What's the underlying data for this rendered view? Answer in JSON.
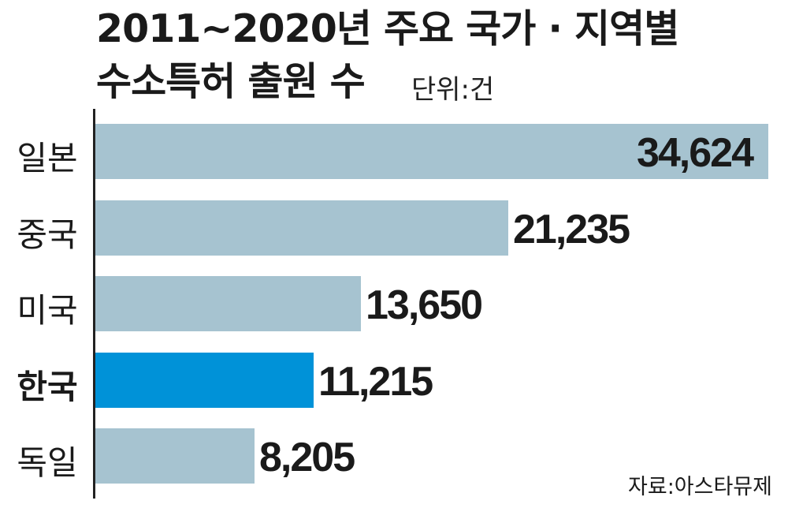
{
  "chart_data": {
    "type": "bar",
    "orientation": "horizontal",
    "title": "2011~2020년 주요 국가 · 지역별 수소특허 출원 수",
    "title_lines": [
      "2011~2020년 주요 국가 · 지역별",
      "수소특허 출원 수"
    ],
    "unit": "단위:건",
    "categories": [
      "일본",
      "중국",
      "미국",
      "한국",
      "독일"
    ],
    "values": [
      34624,
      21235,
      13650,
      11215,
      8205
    ],
    "value_labels": [
      "34,624",
      "21,235",
      "13,650",
      "11,215",
      "8,205"
    ],
    "highlight": "한국",
    "colors": {
      "bar": "#a6c3d0",
      "highlight": "#0092d8",
      "text": "#1a1a1a"
    },
    "xlim": [
      0,
      34624
    ],
    "grid": false,
    "source": "자료:아스타뮤제"
  }
}
